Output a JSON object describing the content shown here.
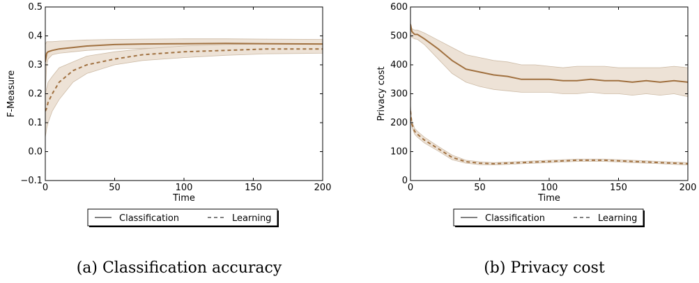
{
  "colors": {
    "line": "#a0703f",
    "band": "#ede2d6",
    "band_edge": "#cdbba6",
    "axis": "#000000"
  },
  "chart_data": [
    {
      "type": "line",
      "caption": "(a) Classification accuracy",
      "xlabel": "Time",
      "ylabel": "F-Measure",
      "xlim": [
        0,
        200
      ],
      "ylim": [
        -0.1,
        0.5
      ],
      "xticks": [
        0,
        50,
        100,
        150,
        200
      ],
      "yticks": [
        -0.1,
        0.0,
        0.1,
        0.2,
        0.3,
        0.4,
        0.5
      ],
      "ytick_labels": [
        "−0.1",
        "0.0",
        "0.1",
        "0.2",
        "0.3",
        "0.4",
        "0.5"
      ],
      "grid": false,
      "legend": {
        "position": "below",
        "entries": [
          "Classification",
          "Learning"
        ]
      },
      "series": [
        {
          "name": "Classification",
          "style": "solid",
          "x": [
            0,
            1,
            2,
            5,
            10,
            20,
            30,
            50,
            70,
            100,
            130,
            160,
            200
          ],
          "y": [
            0.31,
            0.34,
            0.345,
            0.35,
            0.355,
            0.36,
            0.365,
            0.37,
            0.372,
            0.373,
            0.374,
            0.373,
            0.372
          ],
          "upper": [
            0.37,
            0.38,
            0.38,
            0.38,
            0.382,
            0.384,
            0.386,
            0.388,
            0.389,
            0.39,
            0.39,
            0.389,
            0.388
          ],
          "lower": [
            0.2,
            0.3,
            0.32,
            0.335,
            0.34,
            0.345,
            0.35,
            0.355,
            0.357,
            0.358,
            0.358,
            0.358,
            0.357
          ]
        },
        {
          "name": "Learning",
          "style": "dashed",
          "x": [
            0,
            1,
            2,
            5,
            10,
            20,
            30,
            50,
            70,
            100,
            130,
            160,
            200
          ],
          "y": [
            0.14,
            0.15,
            0.17,
            0.2,
            0.24,
            0.28,
            0.3,
            0.32,
            0.335,
            0.345,
            0.35,
            0.355,
            0.355
          ],
          "upper": [
            0.2,
            0.22,
            0.24,
            0.26,
            0.29,
            0.31,
            0.33,
            0.345,
            0.355,
            0.365,
            0.37,
            0.372,
            0.372
          ],
          "lower": [
            0.05,
            0.08,
            0.1,
            0.14,
            0.18,
            0.24,
            0.27,
            0.3,
            0.315,
            0.325,
            0.333,
            0.338,
            0.34
          ]
        }
      ]
    },
    {
      "type": "line",
      "caption": "(b) Privacy cost",
      "xlabel": "Time",
      "ylabel": "Privacy cost",
      "xlim": [
        0,
        200
      ],
      "ylim": [
        0,
        600
      ],
      "xticks": [
        0,
        50,
        100,
        150,
        200
      ],
      "yticks": [
        0,
        100,
        200,
        300,
        400,
        500,
        600
      ],
      "ytick_labels": [
        "0",
        "100",
        "200",
        "300",
        "400",
        "500",
        "600"
      ],
      "grid": false,
      "legend": {
        "position": "below",
        "entries": [
          "Classification",
          "Learning"
        ]
      },
      "series": [
        {
          "name": "Classification",
          "style": "solid",
          "x": [
            0,
            1,
            3,
            5,
            10,
            20,
            30,
            40,
            50,
            60,
            70,
            80,
            90,
            100,
            110,
            120,
            130,
            140,
            150,
            160,
            170,
            180,
            190,
            200
          ],
          "y": [
            540,
            515,
            505,
            505,
            490,
            455,
            415,
            385,
            375,
            365,
            360,
            350,
            350,
            350,
            345,
            345,
            350,
            345,
            345,
            340,
            345,
            340,
            345,
            340
          ],
          "upper": [
            545,
            525,
            520,
            520,
            510,
            485,
            460,
            435,
            425,
            415,
            410,
            400,
            400,
            395,
            390,
            395,
            395,
            395,
            390,
            390,
            390,
            390,
            395,
            390
          ],
          "lower": [
            500,
            495,
            490,
            488,
            470,
            420,
            370,
            340,
            325,
            315,
            310,
            305,
            305,
            305,
            300,
            300,
            305,
            300,
            300,
            295,
            300,
            295,
            300,
            290
          ]
        },
        {
          "name": "Learning",
          "style": "dashed",
          "x": [
            0,
            1,
            3,
            5,
            10,
            20,
            30,
            40,
            50,
            60,
            70,
            80,
            90,
            100,
            110,
            120,
            130,
            140,
            150,
            160,
            170,
            180,
            190,
            200
          ],
          "y": [
            240,
            195,
            170,
            160,
            140,
            110,
            80,
            65,
            60,
            58,
            60,
            62,
            64,
            66,
            68,
            70,
            70,
            70,
            68,
            66,
            64,
            62,
            60,
            58
          ],
          "upper": [
            260,
            205,
            180,
            170,
            150,
            118,
            88,
            70,
            65,
            62,
            64,
            66,
            68,
            70,
            72,
            74,
            74,
            74,
            72,
            70,
            68,
            66,
            64,
            62
          ],
          "lower": [
            225,
            185,
            160,
            150,
            130,
            102,
            72,
            60,
            55,
            54,
            56,
            58,
            60,
            62,
            64,
            66,
            66,
            66,
            64,
            62,
            60,
            58,
            56,
            54
          ]
        }
      ]
    }
  ]
}
